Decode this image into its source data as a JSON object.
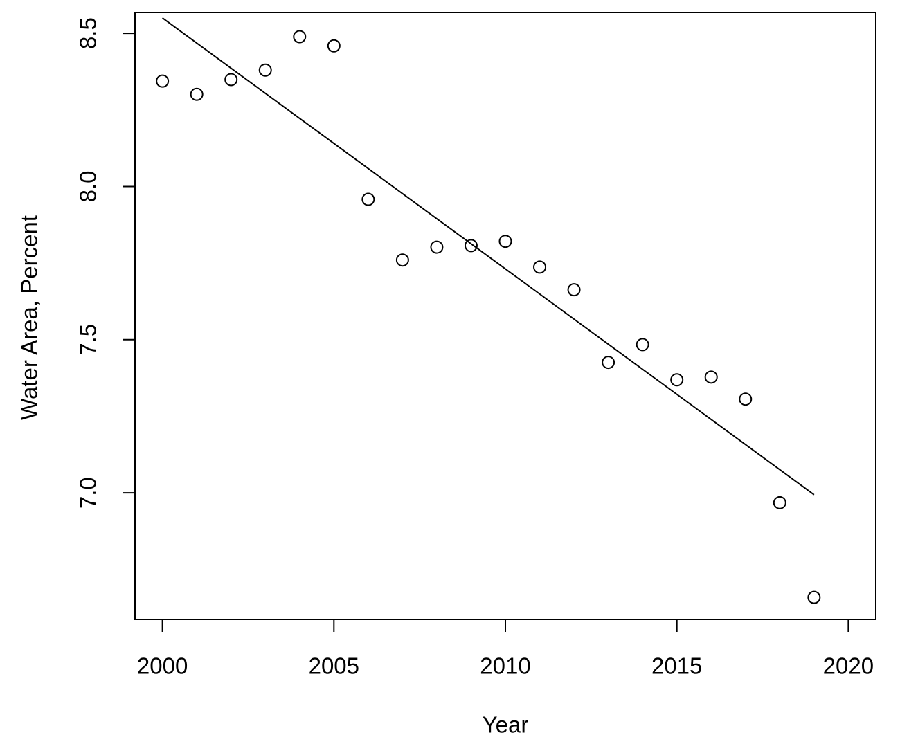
{
  "chart_data": {
    "type": "scatter",
    "x_label": "Year",
    "y_label": "Water Area, Percent",
    "x": [
      2000,
      2001,
      2002,
      2003,
      2004,
      2005,
      2006,
      2007,
      2008,
      2009,
      2010,
      2011,
      2012,
      2013,
      2014,
      2015,
      2016,
      2017,
      2018,
      2019
    ],
    "values": [
      8.344,
      8.301,
      8.349,
      8.38,
      8.489,
      8.459,
      7.958,
      7.76,
      7.802,
      7.807,
      7.821,
      7.737,
      7.663,
      7.426,
      7.484,
      7.369,
      7.378,
      7.306,
      6.968,
      6.659
    ],
    "color": "#000000",
    "trend_line": {
      "x": [
        2000,
        2019
      ],
      "values": [
        8.55,
        6.994
      ],
      "color": "#000000"
    },
    "xlim": [
      1999.2,
      2020.8
    ],
    "ylim": [
      6.587,
      8.568
    ],
    "xticks": [
      2000,
      2005,
      2010,
      2015,
      2020
    ],
    "yticks": [
      {
        "value": 7.0,
        "label": "7.0"
      },
      7.5,
      {
        "value": 8.0,
        "label": "8.0"
      },
      8.5
    ]
  }
}
